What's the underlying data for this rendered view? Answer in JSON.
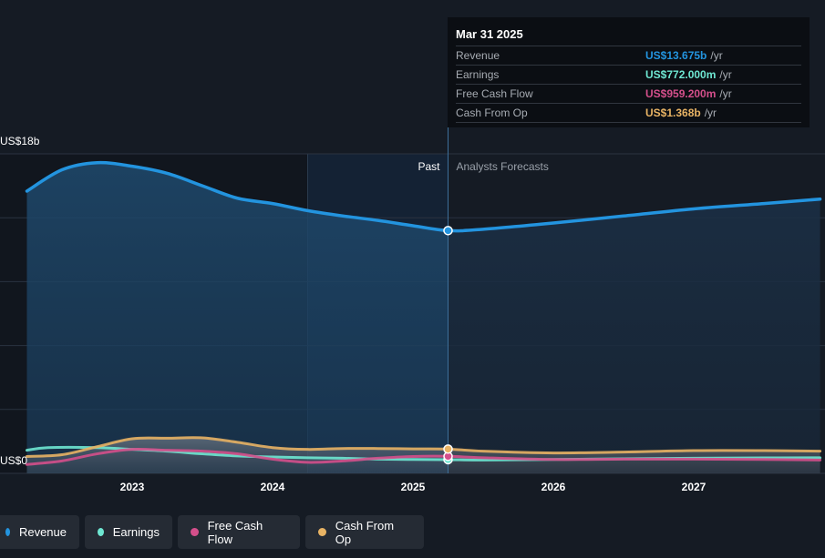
{
  "chart_data": {
    "type": "area",
    "ylim": [
      0,
      18
    ],
    "y_ticks": [
      0,
      3.6,
      7.2,
      10.8,
      14.4,
      18
    ],
    "y_tick_labels": {
      "top": "US$18b",
      "bottom": "US$0"
    },
    "x_ticks": [
      {
        "value": 2023,
        "label": "2023"
      },
      {
        "value": 2024,
        "label": "2024"
      },
      {
        "value": 2025,
        "label": "2025"
      },
      {
        "value": 2026,
        "label": "2026"
      },
      {
        "value": 2027,
        "label": "2027"
      }
    ],
    "past_label": "Past",
    "forecast_label": "Analysts Forecasts",
    "divider_x": 2025.25,
    "highlight_band": [
      2024.25,
      2025.25
    ],
    "series": [
      {
        "name": "Revenue",
        "color": "#2394df",
        "points": [
          [
            2022.25,
            15.9
          ],
          [
            2022.5,
            17.1
          ],
          [
            2022.75,
            17.5
          ],
          [
            2023.0,
            17.3
          ],
          [
            2023.25,
            16.9
          ],
          [
            2023.5,
            16.2
          ],
          [
            2023.75,
            15.5
          ],
          [
            2024.0,
            15.2
          ],
          [
            2024.25,
            14.8
          ],
          [
            2024.5,
            14.5
          ],
          [
            2024.75,
            14.25
          ],
          [
            2025.0,
            13.95
          ],
          [
            2025.25,
            13.675
          ],
          [
            2025.5,
            13.75
          ],
          [
            2026.0,
            14.1
          ],
          [
            2026.5,
            14.5
          ],
          [
            2027.0,
            14.9
          ],
          [
            2027.5,
            15.2
          ],
          [
            2027.9,
            15.45
          ]
        ]
      },
      {
        "name": "Earnings",
        "color": "#6ee7d2",
        "points": [
          [
            2022.25,
            1.3
          ],
          [
            2022.4,
            1.45
          ],
          [
            2022.75,
            1.45
          ],
          [
            2023.0,
            1.35
          ],
          [
            2023.25,
            1.25
          ],
          [
            2023.5,
            1.1
          ],
          [
            2023.75,
            0.98
          ],
          [
            2024.0,
            0.92
          ],
          [
            2024.25,
            0.88
          ],
          [
            2024.5,
            0.85
          ],
          [
            2024.75,
            0.8
          ],
          [
            2025.0,
            0.78
          ],
          [
            2025.25,
            0.772
          ],
          [
            2025.5,
            0.75
          ],
          [
            2026.0,
            0.78
          ],
          [
            2026.5,
            0.82
          ],
          [
            2027.0,
            0.85
          ],
          [
            2027.5,
            0.87
          ],
          [
            2027.9,
            0.88
          ]
        ]
      },
      {
        "name": "Free Cash Flow",
        "color": "#d44f8b",
        "points": [
          [
            2022.25,
            0.5
          ],
          [
            2022.5,
            0.7
          ],
          [
            2022.75,
            1.1
          ],
          [
            2023.0,
            1.35
          ],
          [
            2023.25,
            1.3
          ],
          [
            2023.5,
            1.25
          ],
          [
            2023.75,
            1.1
          ],
          [
            2024.0,
            0.8
          ],
          [
            2024.25,
            0.62
          ],
          [
            2024.5,
            0.7
          ],
          [
            2024.75,
            0.85
          ],
          [
            2025.0,
            0.95
          ],
          [
            2025.25,
            0.959
          ],
          [
            2025.5,
            0.88
          ],
          [
            2026.0,
            0.78
          ],
          [
            2026.5,
            0.8
          ],
          [
            2027.0,
            0.8
          ],
          [
            2027.5,
            0.78
          ],
          [
            2027.9,
            0.75
          ]
        ]
      },
      {
        "name": "Cash From Op",
        "color": "#e8b364",
        "points": [
          [
            2022.25,
            0.95
          ],
          [
            2022.5,
            1.05
          ],
          [
            2022.75,
            1.5
          ],
          [
            2023.0,
            1.95
          ],
          [
            2023.25,
            1.98
          ],
          [
            2023.5,
            2.0
          ],
          [
            2023.75,
            1.75
          ],
          [
            2024.0,
            1.45
          ],
          [
            2024.25,
            1.35
          ],
          [
            2024.5,
            1.4
          ],
          [
            2024.75,
            1.4
          ],
          [
            2025.0,
            1.38
          ],
          [
            2025.25,
            1.368
          ],
          [
            2025.5,
            1.25
          ],
          [
            2026.0,
            1.15
          ],
          [
            2026.5,
            1.2
          ],
          [
            2027.0,
            1.28
          ],
          [
            2027.5,
            1.28
          ],
          [
            2027.9,
            1.25
          ]
        ]
      }
    ]
  },
  "tooltip": {
    "date": "Mar 31 2025",
    "rows": [
      {
        "label": "Revenue",
        "value": "US$13.675b",
        "unit": "/yr",
        "color": "#2394df"
      },
      {
        "label": "Earnings",
        "value": "US$772.000m",
        "unit": "/yr",
        "color": "#6ee7d2"
      },
      {
        "label": "Free Cash Flow",
        "value": "US$959.200m",
        "unit": "/yr",
        "color": "#d44f8b"
      },
      {
        "label": "Cash From Op",
        "value": "US$1.368b",
        "unit": "/yr",
        "color": "#e8b364"
      }
    ]
  },
  "legend": [
    {
      "label": "Revenue",
      "color": "#2394df"
    },
    {
      "label": "Earnings",
      "color": "#6ee7d2"
    },
    {
      "label": "Free Cash Flow",
      "color": "#d44f8b"
    },
    {
      "label": "Cash From Op",
      "color": "#e8b364"
    }
  ]
}
